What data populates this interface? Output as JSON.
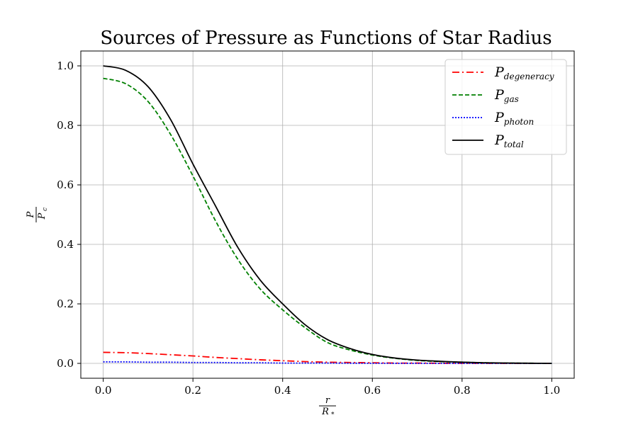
{
  "chart_data": {
    "type": "line",
    "title": "Sources of Pressure as Functions of Star Radius",
    "xlabel": {
      "num": "r",
      "den": "R",
      "den_sub": "*"
    },
    "ylabel": {
      "num": "P",
      "den": "P",
      "den_sub": "c"
    },
    "xlim": [
      -0.05,
      1.05
    ],
    "ylim": [
      -0.05,
      1.05
    ],
    "xticks": [
      0.0,
      0.2,
      0.4,
      0.6,
      0.8,
      1.0
    ],
    "xtick_labels": [
      "0.0",
      "0.2",
      "0.4",
      "0.6",
      "0.8",
      "1.0"
    ],
    "yticks": [
      0.0,
      0.2,
      0.4,
      0.6,
      0.8,
      1.0
    ],
    "ytick_labels": [
      "0.0",
      "0.2",
      "0.4",
      "0.6",
      "0.8",
      "1.0"
    ],
    "grid": true,
    "legend_position": "top-right",
    "x": [
      0.0,
      0.05,
      0.1,
      0.15,
      0.2,
      0.25,
      0.3,
      0.35,
      0.4,
      0.45,
      0.5,
      0.55,
      0.6,
      0.65,
      0.7,
      0.75,
      0.8,
      0.85,
      0.9,
      0.95,
      1.0
    ],
    "series": [
      {
        "name": "P",
        "name_sub": "degeneracy",
        "color": "#ff0000",
        "dash": "10,4,2,4",
        "values": [
          0.037,
          0.036,
          0.033,
          0.029,
          0.025,
          0.02,
          0.016,
          0.012,
          0.009,
          0.006,
          0.004,
          0.003,
          0.002,
          0.001,
          0.001,
          0.0005,
          0.0003,
          0.0002,
          0.0001,
          0.0,
          0.0
        ]
      },
      {
        "name": "P",
        "name_sub": "gas",
        "color": "#008000",
        "dash": "6,3",
        "values": [
          0.958,
          0.94,
          0.88,
          0.77,
          0.63,
          0.48,
          0.35,
          0.25,
          0.18,
          0.12,
          0.07,
          0.045,
          0.028,
          0.017,
          0.01,
          0.006,
          0.004,
          0.002,
          0.001,
          0.0005,
          0.0
        ]
      },
      {
        "name": "P",
        "name_sub": "photon",
        "color": "#0000ff",
        "dash": "2,2",
        "values": [
          0.005,
          0.005,
          0.004,
          0.004,
          0.003,
          0.003,
          0.002,
          0.002,
          0.001,
          0.001,
          0.001,
          0.0005,
          0.0003,
          0.0002,
          0.0001,
          0.0,
          0.0,
          0.0,
          0.0,
          0.0,
          0.0
        ]
      },
      {
        "name": "P",
        "name_sub": "total",
        "color": "#000000",
        "dash": "",
        "values": [
          1.0,
          0.985,
          0.93,
          0.82,
          0.67,
          0.53,
          0.39,
          0.28,
          0.2,
          0.13,
          0.08,
          0.05,
          0.03,
          0.018,
          0.011,
          0.007,
          0.004,
          0.002,
          0.001,
          0.0005,
          0.0
        ]
      }
    ]
  }
}
